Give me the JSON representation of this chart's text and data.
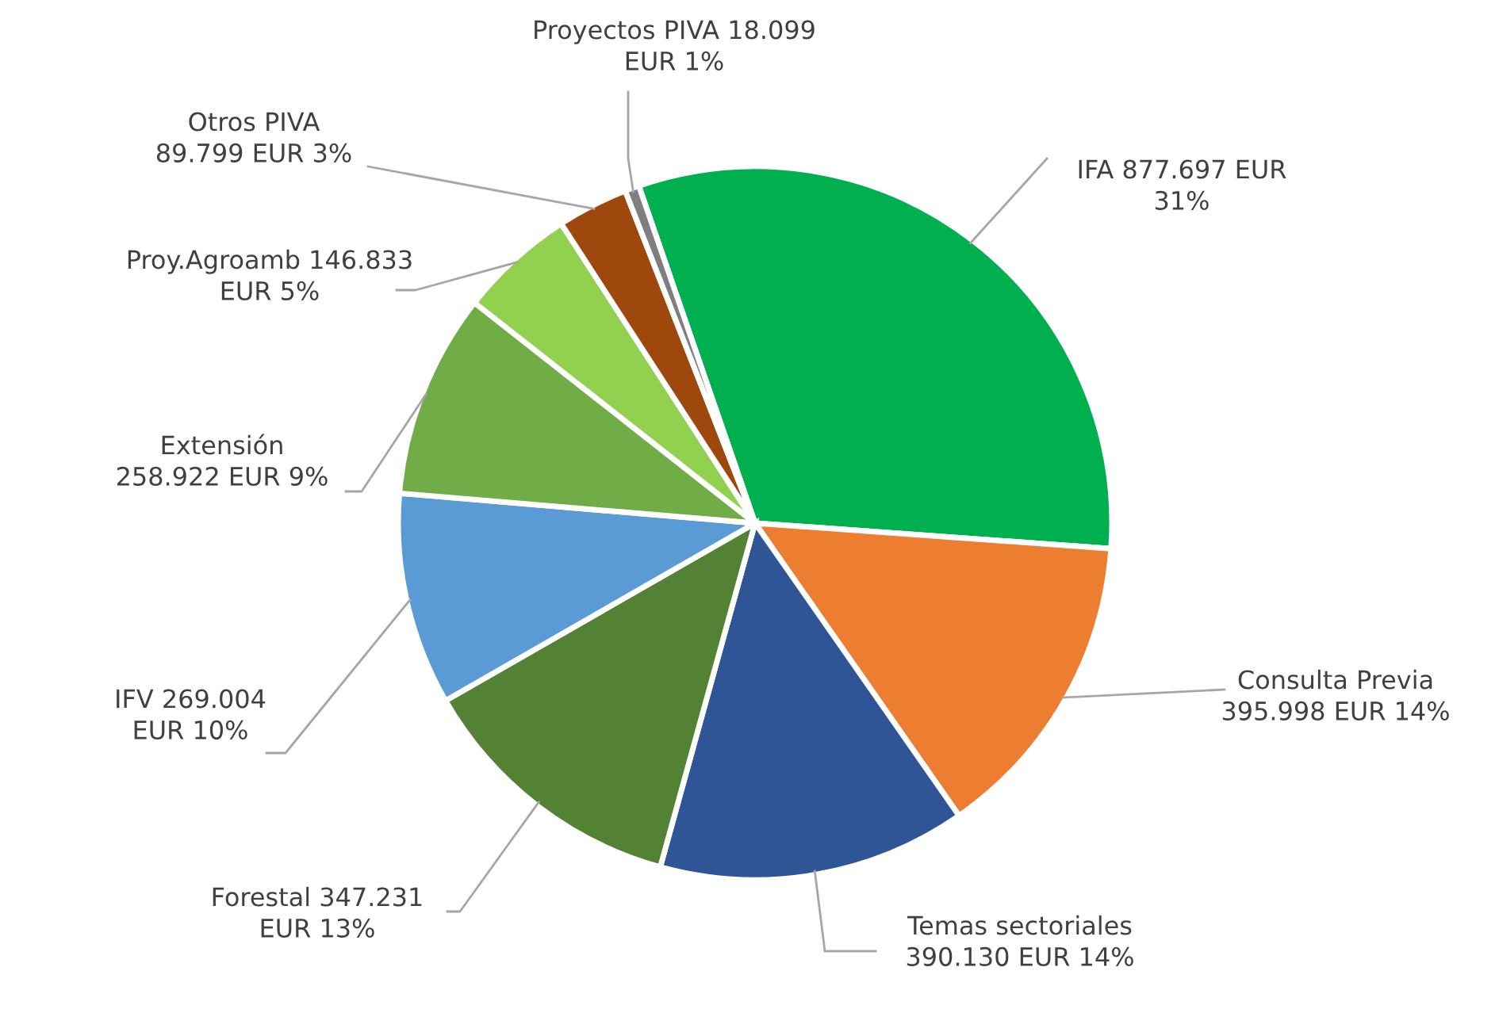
{
  "chart_data": {
    "type": "pie",
    "categories": [
      "IFA",
      "Consulta Previa",
      "Temas sectoriales",
      "Forestal",
      "IFV",
      "Extensión",
      "Proy.Agroamb",
      "Otros PIVA",
      "Proyectos PIVA"
    ],
    "values": [
      877697,
      395998,
      390130,
      347231,
      269004,
      258922,
      146833,
      89799,
      18099
    ],
    "value_labels": [
      "877.697 EUR\n31%",
      "\n395.998 EUR 14%",
      "\n390.130 EUR 14%",
      "347.231\nEUR 13%",
      "269.004\nEUR 10%",
      "\n258.922 EUR 9%",
      "146.833\nEUR 5%",
      "\n89.799 EUR 3%",
      "18.099\nEUR 1%"
    ],
    "colors": [
      "#00b050",
      "#ed7d31",
      "#2f5597",
      "#548235",
      "#5b9bd5",
      "#70ad47",
      "#92d050",
      "#9e480e",
      "#7f7f7f"
    ],
    "legend": false
  }
}
